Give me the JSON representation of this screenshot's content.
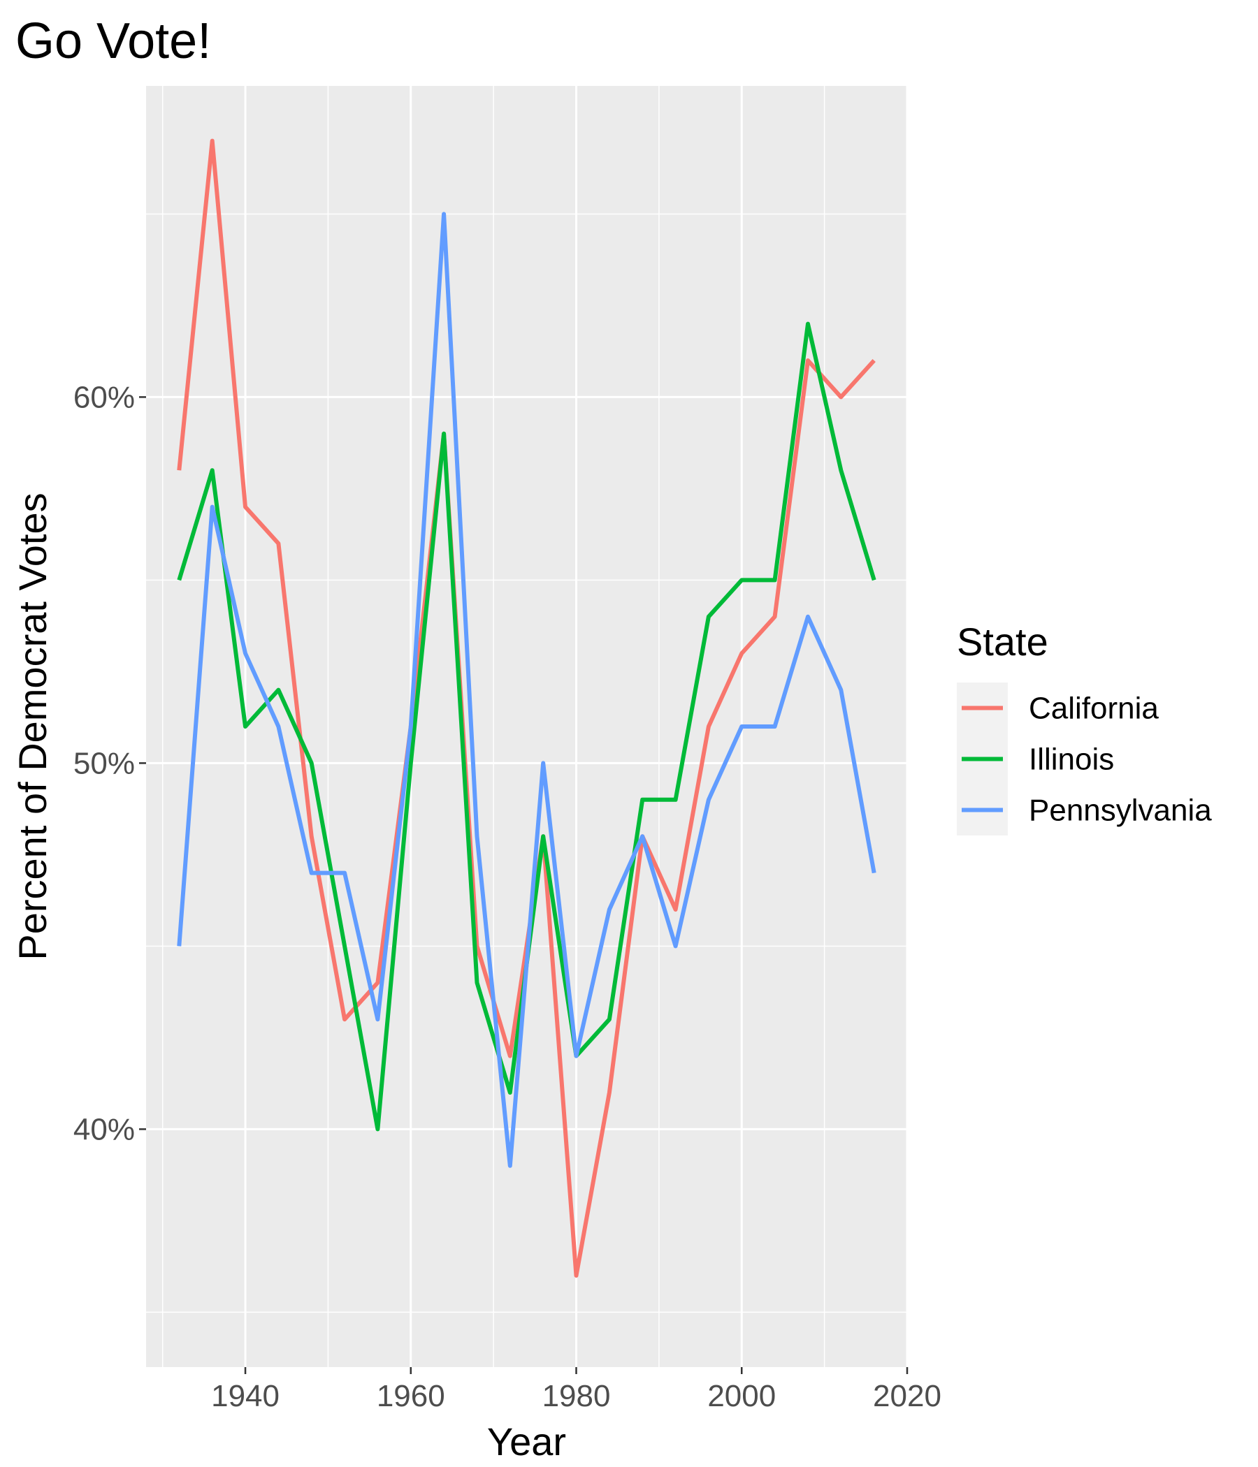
{
  "chart_data": {
    "type": "line",
    "title": "Go Vote!",
    "xlabel": "Year",
    "ylabel": "Percent of Democrat Votes",
    "x": [
      1932,
      1936,
      1940,
      1944,
      1948,
      1952,
      1956,
      1960,
      1964,
      1968,
      1972,
      1976,
      1980,
      1984,
      1988,
      1992,
      1996,
      2000,
      2004,
      2008,
      2012,
      2016
    ],
    "xlim": [
      1928,
      2020
    ],
    "ylim": [
      0.335,
      0.685
    ],
    "x_ticks": [
      1940,
      1960,
      1980,
      2000,
      2020
    ],
    "x_tick_labels": [
      "1940",
      "1960",
      "1980",
      "2000",
      "2020"
    ],
    "y_ticks": [
      0.4,
      0.5,
      0.6
    ],
    "y_tick_labels": [
      "40%",
      "50%",
      "60%"
    ],
    "grid": true,
    "legend": {
      "title": "State",
      "position": "right"
    },
    "series": [
      {
        "name": "California",
        "color": "#F8766D",
        "values": [
          0.58,
          0.67,
          0.57,
          0.56,
          0.48,
          0.43,
          0.44,
          0.51,
          0.59,
          0.45,
          0.42,
          0.48,
          0.36,
          0.41,
          0.48,
          0.46,
          0.51,
          0.53,
          0.54,
          0.61,
          0.6,
          0.61
        ]
      },
      {
        "name": "Illinois",
        "color": "#00BA38",
        "values": [
          0.55,
          0.58,
          0.51,
          0.52,
          0.5,
          0.45,
          0.4,
          0.5,
          0.59,
          0.44,
          0.41,
          0.48,
          0.42,
          0.43,
          0.49,
          0.49,
          0.54,
          0.55,
          0.55,
          0.62,
          0.58,
          0.55
        ]
      },
      {
        "name": "Pennsylvania",
        "color": "#619CFF",
        "values": [
          0.45,
          0.57,
          0.53,
          0.51,
          0.47,
          0.47,
          0.43,
          0.51,
          0.65,
          0.48,
          0.39,
          0.5,
          0.42,
          0.46,
          0.48,
          0.45,
          0.49,
          0.51,
          0.51,
          0.54,
          0.52,
          0.47
        ]
      }
    ]
  }
}
